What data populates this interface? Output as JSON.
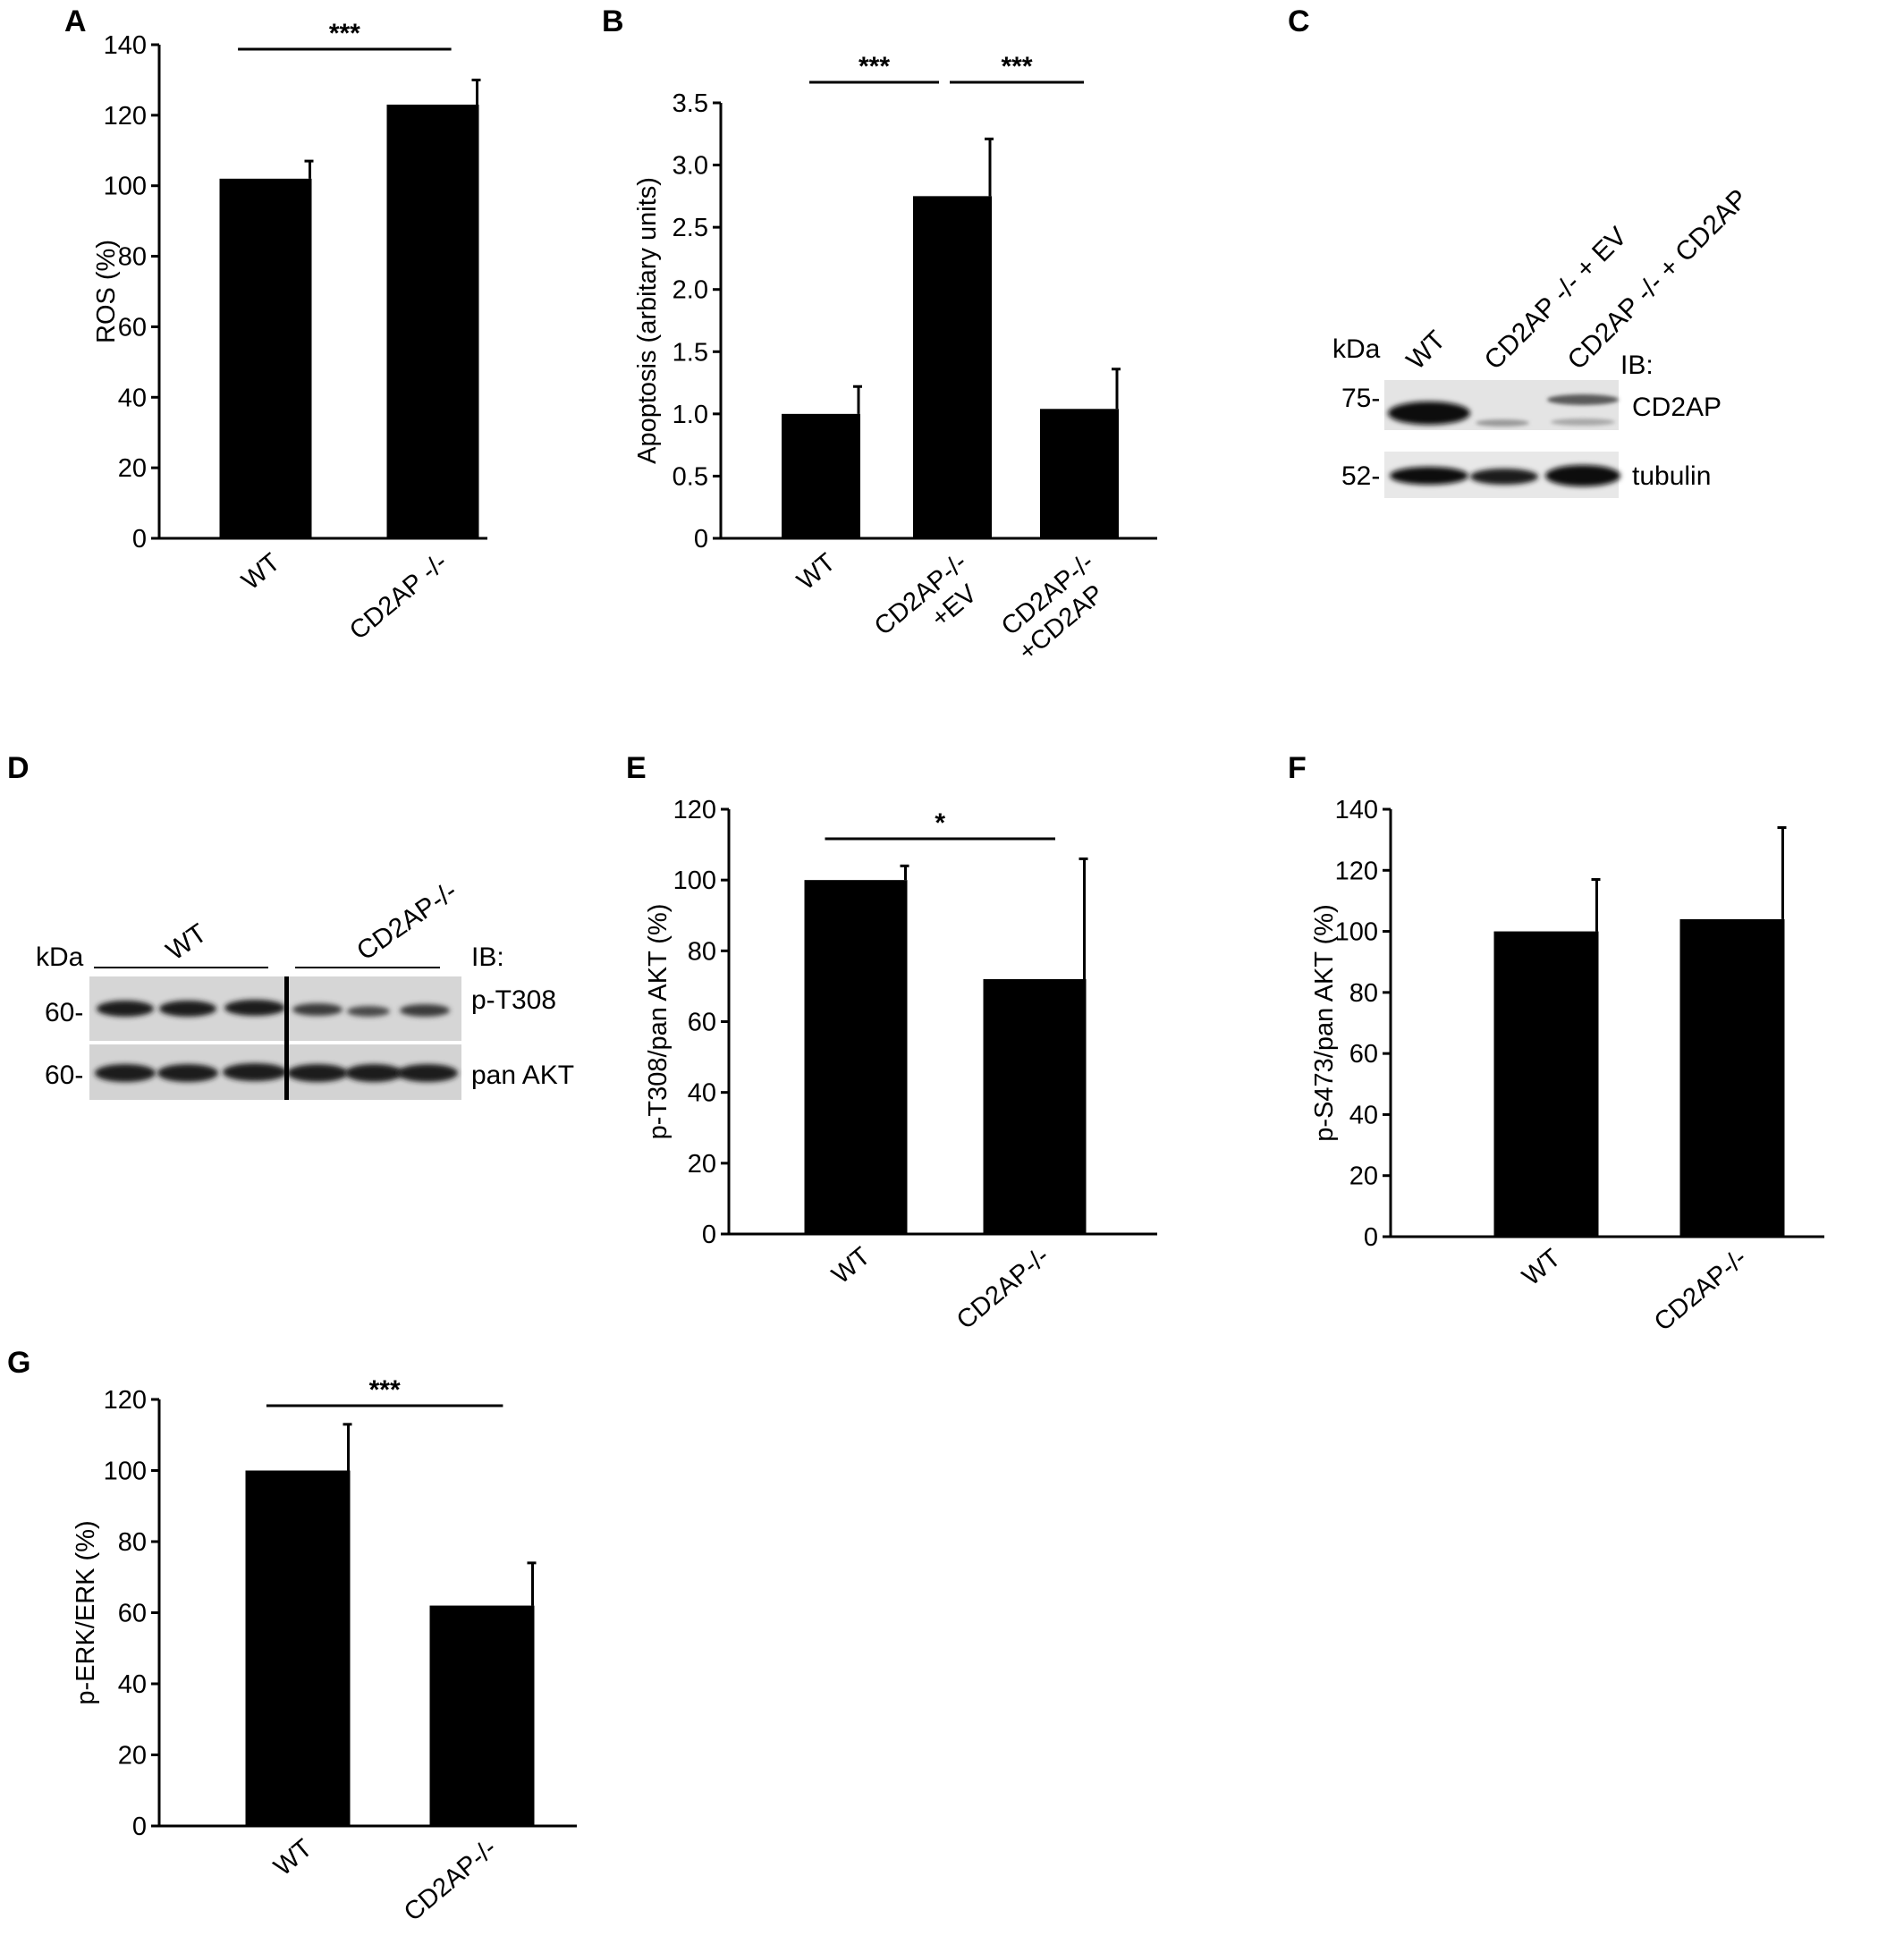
{
  "figure": {
    "panels": [
      "A",
      "B",
      "C",
      "D",
      "E",
      "F",
      "G"
    ]
  },
  "chart_data": [
    {
      "panel": "A",
      "type": "bar",
      "categories": [
        "WT",
        "CD2AP -/-"
      ],
      "values": [
        102,
        123
      ],
      "errors": [
        5,
        7
      ],
      "ylabel": "ROS (%)",
      "ylim": [
        0,
        140
      ],
      "yticks": [
        "0",
        "20",
        "40",
        "60",
        "80",
        "100",
        "120",
        "140"
      ],
      "significance": [
        {
          "from": 0,
          "to": 1,
          "label": "***"
        }
      ]
    },
    {
      "panel": "B",
      "type": "bar",
      "categories": [
        "WT",
        "CD2AP-/-\n+EV",
        "CD2AP-/-\n+CD2AP"
      ],
      "values": [
        1.0,
        2.75,
        1.04
      ],
      "errors": [
        0.22,
        0.46,
        0.32
      ],
      "ylabel": "Apoptosis (arbitary units)",
      "ylim": [
        0,
        3.5
      ],
      "yticks": [
        "0",
        "0.5",
        "1.0",
        "1.5",
        "2.0",
        "2.5",
        "3.0",
        "3.5"
      ],
      "significance": [
        {
          "from": 0,
          "to": 1,
          "label": "***"
        },
        {
          "from": 1,
          "to": 2,
          "label": "***"
        }
      ]
    },
    {
      "panel": "E",
      "type": "bar",
      "categories": [
        "WT",
        "CD2AP-/-"
      ],
      "values": [
        100,
        72
      ],
      "errors": [
        4,
        34
      ],
      "ylabel": "p-T308/pan AKT (%)",
      "ylim": [
        0,
        120
      ],
      "yticks": [
        "0",
        "20",
        "40",
        "60",
        "80",
        "100",
        "120"
      ],
      "significance": [
        {
          "from": 0,
          "to": 1,
          "label": "*"
        }
      ]
    },
    {
      "panel": "F",
      "type": "bar",
      "categories": [
        "WT",
        "CD2AP-/-"
      ],
      "values": [
        100,
        104
      ],
      "errors": [
        17,
        30
      ],
      "ylabel": "p-S473/pan AKT (%)",
      "ylim": [
        0,
        140
      ],
      "yticks": [
        "0",
        "20",
        "40",
        "60",
        "80",
        "100",
        "120",
        "140"
      ],
      "significance": []
    },
    {
      "panel": "G",
      "type": "bar",
      "categories": [
        "WT",
        "CD2AP-/-"
      ],
      "values": [
        100,
        62
      ],
      "errors": [
        13,
        12
      ],
      "ylabel": "p-ERK/ERK (%)",
      "ylim": [
        0,
        120
      ],
      "yticks": [
        "0",
        "20",
        "40",
        "60",
        "80",
        "100",
        "120"
      ],
      "significance": [
        {
          "from": 0,
          "to": 1,
          "label": "***"
        }
      ]
    }
  ],
  "blots": {
    "C": {
      "lanes": [
        "WT",
        "CD2AP -/- + EV",
        "CD2AP -/- + CD2AP"
      ],
      "kda_label": "kDa",
      "ib_label": "IB:",
      "rows": [
        {
          "marker": "75-",
          "target": "CD2AP"
        },
        {
          "marker": "52-",
          "target": "tubulin"
        }
      ]
    },
    "D": {
      "groups": [
        "WT",
        "CD2AP-/-"
      ],
      "kda_label": "kDa",
      "ib_label": "IB:",
      "rows": [
        {
          "marker": "60-",
          "target": "p-T308"
        },
        {
          "marker": "60-",
          "target": "pan AKT"
        }
      ]
    }
  }
}
